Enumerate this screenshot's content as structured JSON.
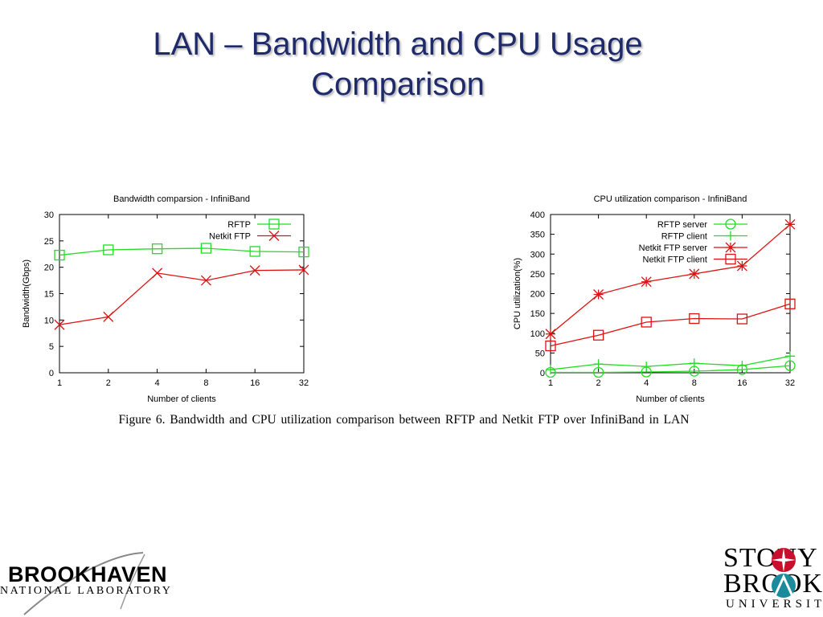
{
  "slide": {
    "title_line1": "LAN – Bandwidth and CPU Usage",
    "title_line2": "Comparison",
    "caption": "Figure 6.   Bandwidth and CPU utilization comparison between RFTP and Netkit FTP over InfiniBand in LAN"
  },
  "colors": {
    "title": "#1f2a6b",
    "green": "#22dd22",
    "red": "#dd1111"
  },
  "logos": {
    "brookhaven": {
      "name": "BROOKHAVEN",
      "subtitle": "NATIONAL LABORATORY"
    },
    "stony_brook": {
      "line1": "STONY",
      "line2": "BROOK",
      "line3": "UNIVERSITY"
    }
  },
  "chart_data": [
    {
      "type": "line",
      "title": "Bandwidth comparsion - InfiniBand",
      "xlabel": "Number of clients",
      "ylabel": "Bandwidth(Gbps)",
      "categories": [
        "1",
        "2",
        "4",
        "8",
        "16",
        "32"
      ],
      "ylim": [
        0,
        30
      ],
      "yticks": [
        0,
        5,
        10,
        15,
        20,
        25,
        30
      ],
      "legend_position": "top-right",
      "series": [
        {
          "name": "RFTP",
          "color": "#22dd22",
          "marker": "square",
          "values": [
            22.3,
            23.3,
            23.5,
            23.6,
            23.0,
            22.9
          ]
        },
        {
          "name": "Netkit FTP",
          "color": "#dd1111",
          "marker": "x",
          "values": [
            9.1,
            10.6,
            18.9,
            17.5,
            19.4,
            19.5
          ]
        }
      ]
    },
    {
      "type": "line",
      "title": "CPU utilization comparison - InfiniBand",
      "xlabel": "Number of clients",
      "ylabel": "CPU utilization(%)",
      "categories": [
        "1",
        "2",
        "4",
        "8",
        "16",
        "32"
      ],
      "ylim": [
        0,
        400
      ],
      "yticks": [
        0,
        50,
        100,
        150,
        200,
        250,
        300,
        350,
        400
      ],
      "legend_position": "top-left",
      "series": [
        {
          "name": "RFTP server",
          "color": "#22dd22",
          "marker": "circle",
          "values": [
            1,
            1,
            2,
            4,
            8,
            18
          ]
        },
        {
          "name": "RFTP client",
          "color": "#22dd22",
          "marker": "plus",
          "values": [
            8,
            22,
            16,
            24,
            18,
            42
          ]
        },
        {
          "name": "Netkit FTP server",
          "color": "#dd1111",
          "marker": "star",
          "values": [
            98,
            198,
            230,
            250,
            270,
            375
          ]
        },
        {
          "name": "Netkit FTP client",
          "color": "#dd1111",
          "marker": "square",
          "values": [
            68,
            95,
            128,
            137,
            136,
            174
          ]
        }
      ]
    }
  ]
}
